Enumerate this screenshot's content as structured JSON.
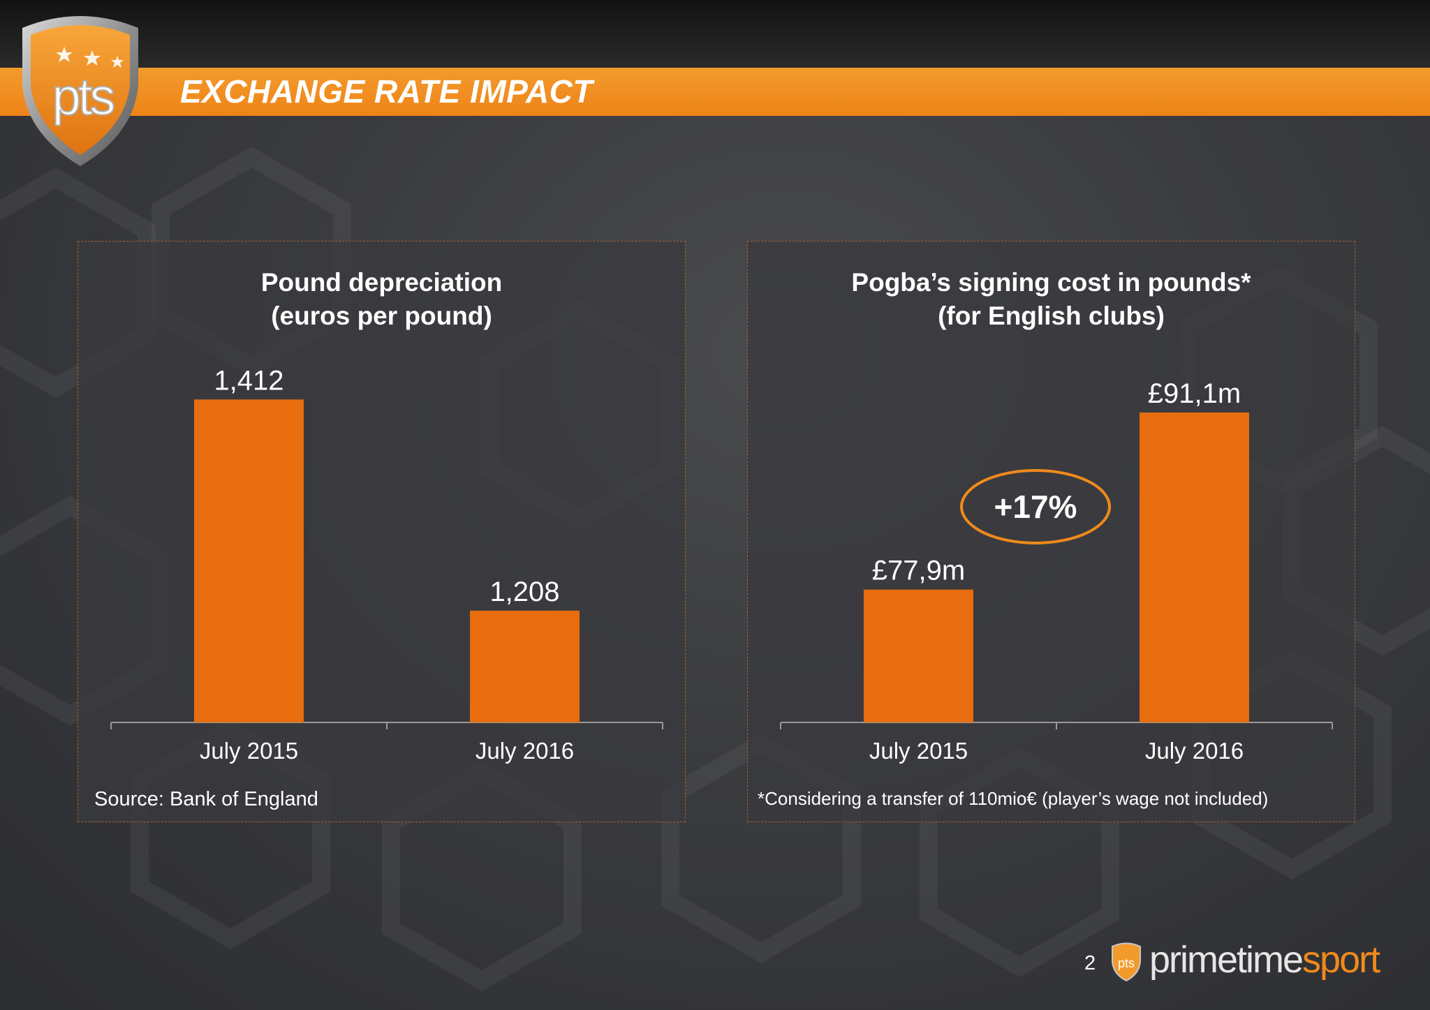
{
  "header": {
    "title": "EXCHANGE RATE IMPACT",
    "logo_text": "pts"
  },
  "footer": {
    "page_number": "2",
    "logo_text": "pts",
    "brand_part1": "primetime",
    "brand_part2": "sport"
  },
  "colors": {
    "accent": "#f08a1c",
    "bar": "#e76d0e"
  },
  "chart_data": [
    {
      "type": "bar",
      "title_lines": [
        "Pound depreciation",
        "(euros per pound)"
      ],
      "categories": [
        "July 2015",
        "July 2016"
      ],
      "values": [
        1.412,
        1.208
      ],
      "value_labels": [
        "1,412",
        "1,208"
      ],
      "ylim": [
        1.1,
        1.45
      ],
      "note": "Source: Bank of England"
    },
    {
      "type": "bar",
      "title_lines": [
        "Pogba’s signing cost in pounds*",
        "(for English clubs)"
      ],
      "categories": [
        "July 2015",
        "July 2016"
      ],
      "values": [
        77.9,
        91.1
      ],
      "value_labels": [
        "£77,9m",
        "£91,1m"
      ],
      "ylim": [
        68,
        95
      ],
      "annotation": "+17%",
      "note": "*Considering a transfer of 110mio€ (player’s wage not included)"
    }
  ]
}
